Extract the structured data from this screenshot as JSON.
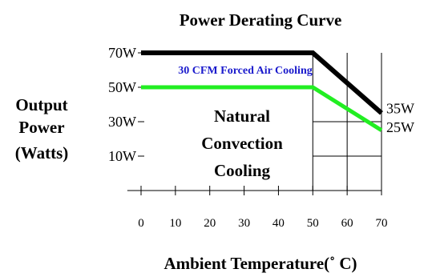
{
  "chart_data": {
    "type": "line",
    "title": "Power Derating Curve",
    "xlabel": "Ambient Temperature(˚ C)",
    "ylabel_lines": [
      "Output",
      "Power",
      "(Watts)"
    ],
    "x_ticks": [
      0,
      10,
      20,
      30,
      40,
      50,
      60,
      70
    ],
    "x_tick_labels": [
      "0",
      "10",
      "20",
      "30",
      "40",
      "50",
      "60",
      "70"
    ],
    "y_ticks": [
      70,
      50,
      30,
      10
    ],
    "y_tick_labels": [
      "70W",
      "50W",
      "30W",
      "10W"
    ],
    "xlim": [
      0,
      70
    ],
    "ylim": [
      -10,
      70
    ],
    "grid": true,
    "series": [
      {
        "name": "30 CFM Forced Air Cooling",
        "color": "#000000",
        "points": [
          [
            0,
            70
          ],
          [
            50,
            70
          ],
          [
            70,
            35
          ]
        ],
        "end_label": "35W"
      },
      {
        "name": "Natural Convection Cooling",
        "color": "#22ee22",
        "points": [
          [
            0,
            50
          ],
          [
            50,
            50
          ],
          [
            70,
            25
          ]
        ],
        "end_label": "25W"
      }
    ],
    "annotations": {
      "forced_air": {
        "text": "30 CFM Forced Air Cooling",
        "color": "#1a1acc"
      },
      "natural_lines": [
        "Natural",
        "Convection",
        "Cooling"
      ]
    }
  }
}
